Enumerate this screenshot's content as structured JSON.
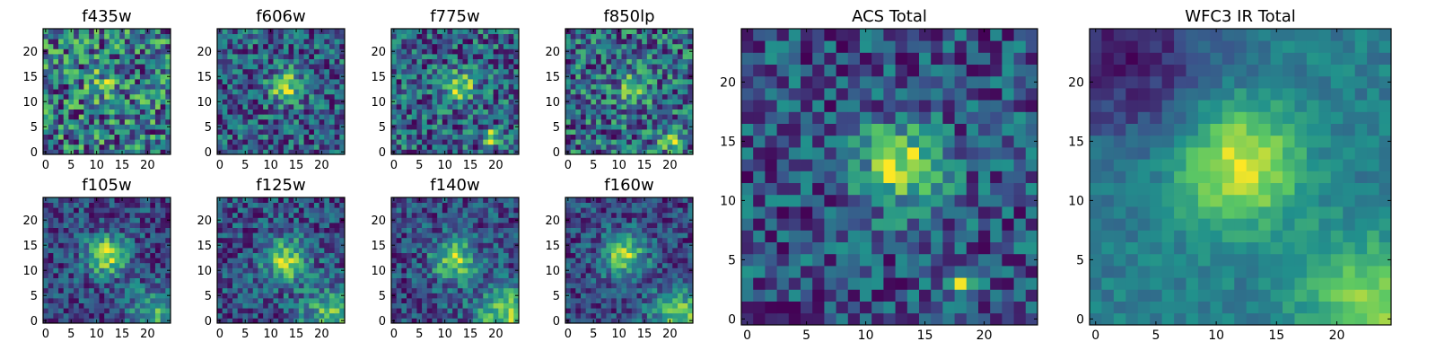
{
  "figure": {
    "colormap": "viridis",
    "colormap_stops": [
      "#440154",
      "#3b528b",
      "#21918c",
      "#5ec962",
      "#fde725"
    ]
  },
  "chart_data": [
    {
      "type": "heatmap",
      "title": "f435w",
      "grid_size": 25,
      "xlim": [
        0,
        24
      ],
      "ylim": [
        0,
        24
      ],
      "xticks": [
        "0",
        "5",
        "10",
        "15",
        "20"
      ],
      "yticks": [
        "0",
        "5",
        "10",
        "15",
        "20"
      ],
      "source_x": 12,
      "source_y": 14,
      "source_strength": 0.25,
      "source_width": 2.5,
      "noise": 0.55,
      "background": 0.45,
      "seed": 11
    },
    {
      "type": "heatmap",
      "title": "f606w",
      "grid_size": 25,
      "xlim": [
        0,
        24
      ],
      "ylim": [
        0,
        24
      ],
      "xticks": [
        "0",
        "5",
        "10",
        "15",
        "20"
      ],
      "yticks": [
        "0",
        "5",
        "10",
        "15",
        "20"
      ],
      "source_x": 13,
      "source_y": 13,
      "source_strength": 0.55,
      "source_width": 2.2,
      "noise": 0.35,
      "background": 0.35,
      "seed": 23
    },
    {
      "type": "heatmap",
      "title": "f775w",
      "grid_size": 25,
      "xlim": [
        0,
        24
      ],
      "ylim": [
        0,
        24
      ],
      "xticks": [
        "0",
        "5",
        "10",
        "15",
        "20"
      ],
      "yticks": [
        "0",
        "5",
        "10",
        "15",
        "20"
      ],
      "source_x": 13,
      "source_y": 13,
      "source_strength": 0.5,
      "source_width": 2.2,
      "noise": 0.4,
      "background": 0.35,
      "seed": 37,
      "extra_source": {
        "x": 19,
        "y": 3,
        "strength": 0.55,
        "width": 1.2
      }
    },
    {
      "type": "heatmap",
      "title": "f850lp",
      "grid_size": 25,
      "xlim": [
        0,
        24
      ],
      "ylim": [
        0,
        24
      ],
      "xticks": [
        "0",
        "5",
        "10",
        "15",
        "20"
      ],
      "yticks": [
        "0",
        "5",
        "10",
        "15",
        "20"
      ],
      "source_x": 13,
      "source_y": 13,
      "source_strength": 0.4,
      "source_width": 2.3,
      "noise": 0.45,
      "background": 0.45,
      "seed": 41,
      "extra_source": {
        "x": 20,
        "y": 2,
        "strength": 0.4,
        "width": 1.6
      }
    },
    {
      "type": "heatmap",
      "title": "f105w",
      "grid_size": 25,
      "xlim": [
        0,
        24
      ],
      "ylim": [
        0,
        24
      ],
      "xticks": [
        "0",
        "5",
        "10",
        "15",
        "20"
      ],
      "yticks": [
        "0",
        "5",
        "10",
        "15",
        "20"
      ],
      "source_x": 12,
      "source_y": 13,
      "source_strength": 0.5,
      "source_width": 2.8,
      "noise": 0.22,
      "background": 0.45,
      "seed": 53,
      "gradient": {
        "x": 22,
        "y": 1,
        "strength": 0.3,
        "width": 4
      }
    },
    {
      "type": "heatmap",
      "title": "f125w",
      "grid_size": 25,
      "xlim": [
        0,
        24
      ],
      "ylim": [
        0,
        24
      ],
      "xticks": [
        "0",
        "5",
        "10",
        "15",
        "20"
      ],
      "yticks": [
        "0",
        "5",
        "10",
        "15",
        "20"
      ],
      "source_x": 13,
      "source_y": 12,
      "source_strength": 0.45,
      "source_width": 3.0,
      "noise": 0.24,
      "background": 0.45,
      "seed": 67,
      "gradient": {
        "x": 22,
        "y": 1,
        "strength": 0.35,
        "width": 4
      }
    },
    {
      "type": "heatmap",
      "title": "f140w",
      "grid_size": 25,
      "xlim": [
        0,
        24
      ],
      "ylim": [
        0,
        24
      ],
      "xticks": [
        "0",
        "5",
        "10",
        "15",
        "20"
      ],
      "yticks": [
        "0",
        "5",
        "10",
        "15",
        "20"
      ],
      "source_x": 12,
      "source_y": 12,
      "source_strength": 0.45,
      "source_width": 3.0,
      "noise": 0.24,
      "background": 0.45,
      "seed": 79,
      "gradient": {
        "x": 22,
        "y": 1,
        "strength": 0.45,
        "width": 4
      }
    },
    {
      "type": "heatmap",
      "title": "f160w",
      "grid_size": 25,
      "xlim": [
        0,
        24
      ],
      "ylim": [
        0,
        24
      ],
      "xticks": [
        "0",
        "5",
        "10",
        "15",
        "20"
      ],
      "yticks": [
        "0",
        "5",
        "10",
        "15",
        "20"
      ],
      "source_x": 11,
      "source_y": 13,
      "source_strength": 0.5,
      "source_width": 3.0,
      "noise": 0.22,
      "background": 0.45,
      "seed": 83,
      "gradient": {
        "x": 22,
        "y": 1,
        "strength": 0.45,
        "width": 4
      }
    },
    {
      "type": "heatmap",
      "title": "ACS Total",
      "grid_size": 25,
      "xlim": [
        0,
        24
      ],
      "ylim": [
        0,
        24
      ],
      "xticks": [
        "0",
        "5",
        "10",
        "15",
        "20"
      ],
      "yticks": [
        "0",
        "5",
        "10",
        "15",
        "20"
      ],
      "source_x": 13,
      "source_y": 13,
      "source_strength": 0.55,
      "source_width": 2.4,
      "noise": 0.28,
      "background": 0.42,
      "seed": 97,
      "extra_source": {
        "x": 18,
        "y": 3,
        "strength": 0.5,
        "width": 0.9
      }
    },
    {
      "type": "heatmap",
      "title": "WFC3 IR Total",
      "grid_size": 25,
      "xlim": [
        0,
        24
      ],
      "ylim": [
        0,
        24
      ],
      "xticks": [
        "0",
        "5",
        "10",
        "15",
        "20"
      ],
      "yticks": [
        "0",
        "5",
        "10",
        "15",
        "20"
      ],
      "source_x": 12,
      "source_y": 13,
      "source_strength": 0.55,
      "source_width": 3.5,
      "noise": 0.12,
      "background": 0.42,
      "seed": 101,
      "gradient": {
        "x": 23,
        "y": 1,
        "strength": 0.4,
        "width": 4
      },
      "dark_corner": {
        "x": 3,
        "y": 22,
        "strength": 0.35,
        "width": 5
      }
    }
  ]
}
